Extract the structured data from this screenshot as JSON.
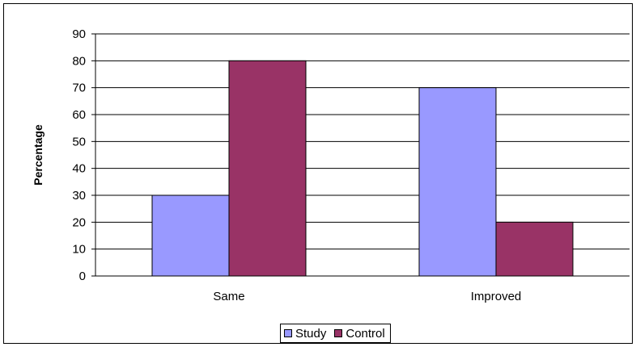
{
  "chart_data": {
    "type": "bar",
    "categories": [
      "Same",
      "Improved"
    ],
    "series": [
      {
        "name": "Study",
        "values": [
          30,
          70
        ],
        "color": "#9999ff"
      },
      {
        "name": "Control",
        "values": [
          80,
          20
        ],
        "color": "#993366"
      }
    ],
    "ylabel": "Percentage",
    "xlabel": "",
    "ylim": [
      0,
      90
    ],
    "yticks": [
      "0",
      "10",
      "20",
      "30",
      "40",
      "50",
      "60",
      "70",
      "80",
      "90"
    ],
    "grid": true,
    "legend_position": "bottom"
  }
}
